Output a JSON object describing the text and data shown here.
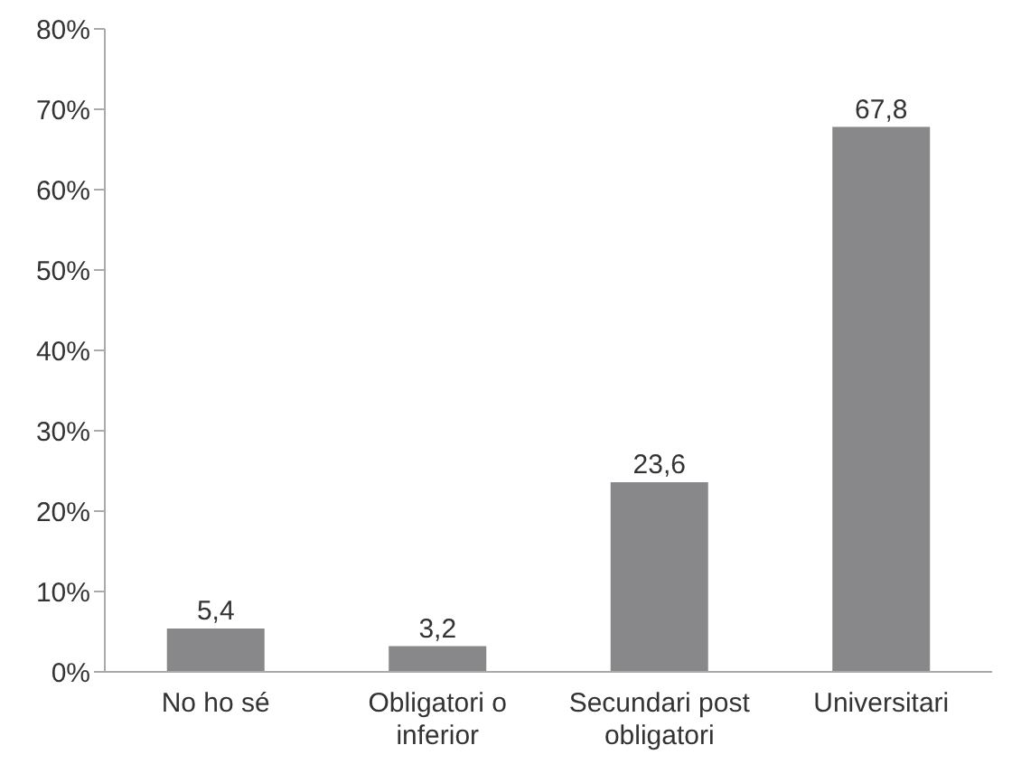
{
  "chart_data": {
    "type": "bar",
    "categories": [
      "No ho sé",
      "Obligatori o inferior",
      "Secundari post obligatori",
      "Universitari"
    ],
    "values": [
      5.4,
      3.2,
      23.6,
      67.8
    ],
    "color": "#88888b",
    "value_labels": [
      "5,4",
      "3,2",
      "23,6",
      "67,8"
    ],
    "ylim": [
      0,
      80
    ],
    "yticks": [
      {
        "value": 0,
        "label": "0%"
      },
      {
        "value": 10,
        "label": "10%"
      },
      {
        "value": 20,
        "label": "20%"
      },
      {
        "value": 30,
        "label": "30%"
      },
      {
        "value": 40,
        "label": "40%"
      },
      {
        "value": 50,
        "label": "50%"
      },
      {
        "value": 60,
        "label": "60%"
      },
      {
        "value": 70,
        "label": "70%"
      },
      {
        "value": 80,
        "label": "80%"
      }
    ],
    "grid": false
  }
}
